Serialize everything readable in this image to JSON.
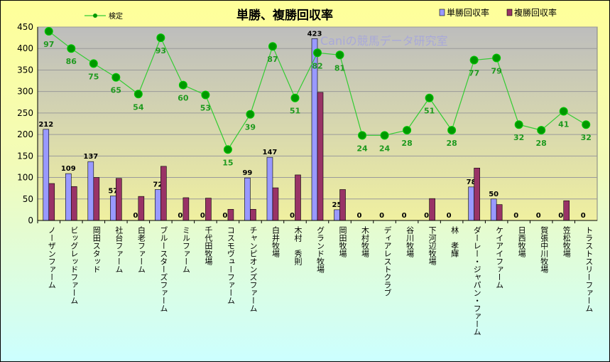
{
  "chart_data": {
    "type": "bar",
    "title": "単勝、複勝回収率",
    "watermark": "Caniの競馬データ研究室",
    "ylim": [
      0,
      450
    ],
    "yticks": [
      0,
      50,
      100,
      150,
      200,
      250,
      300,
      350,
      400,
      450
    ],
    "categories": [
      "ノーザンファーム",
      "ビッグレッドファーム",
      "岡田スタッド",
      "社台ファーム",
      "白老ファーム",
      "ブルースターズファーム",
      "ミルファーム",
      "千代田牧場",
      "コスモヴューファーム",
      "チャンピオンズファーム",
      "白井牧場",
      "木村　秀則",
      "グランド牧場",
      "岡田牧場",
      "木村牧場",
      "ディアレストクラブ",
      "谷川牧場",
      "下河辺牧場",
      "林　孝輝",
      "ダーレー・ジャパン・ファーム",
      "ケイアイファーム",
      "日西牧場",
      "賀張中川牧場",
      "笠松牧場",
      "トラストスリーファーム"
    ],
    "series": [
      {
        "name": "単勝回収率",
        "kind": "bar",
        "color": "#9999ff",
        "values": [
          212,
          109,
          137,
          57,
          0,
          72,
          0,
          0,
          0,
          99,
          147,
          0,
          423,
          25,
          0,
          0,
          0,
          0,
          0,
          78,
          50,
          0,
          0,
          0,
          0
        ],
        "labels": [
          "212",
          "109",
          "137",
          "57",
          "0",
          "72",
          "0",
          "0",
          "0",
          "99",
          "147",
          "0",
          "423",
          "25",
          "0",
          "0",
          "0",
          "0",
          "0",
          "78",
          "50",
          "0",
          "0",
          "0",
          "0"
        ]
      },
      {
        "name": "複勝回収率",
        "kind": "bar",
        "color": "#993366",
        "values": [
          86,
          79,
          100,
          98,
          56,
          126,
          53,
          52,
          26,
          26,
          76,
          106,
          298,
          72,
          0,
          0,
          0,
          51,
          0,
          122,
          37,
          0,
          0,
          46,
          0
        ]
      },
      {
        "name": "検定",
        "kind": "line",
        "color": "#33cc33",
        "marker_color": "#009900",
        "values": [
          440,
          400,
          365,
          333,
          294,
          425,
          315,
          292,
          165,
          247,
          405,
          285,
          390,
          385,
          198,
          198,
          210,
          285,
          210,
          373,
          378,
          223,
          210,
          254,
          223
        ],
        "labels": [
          "97",
          "86",
          "75",
          "65",
          "54",
          "93",
          "60",
          "53",
          "15",
          "39",
          "87",
          "51",
          "82",
          "81",
          "24",
          "24",
          "28",
          "51",
          "28",
          "77",
          "79",
          "32",
          "28",
          "41",
          "32"
        ]
      }
    ]
  }
}
